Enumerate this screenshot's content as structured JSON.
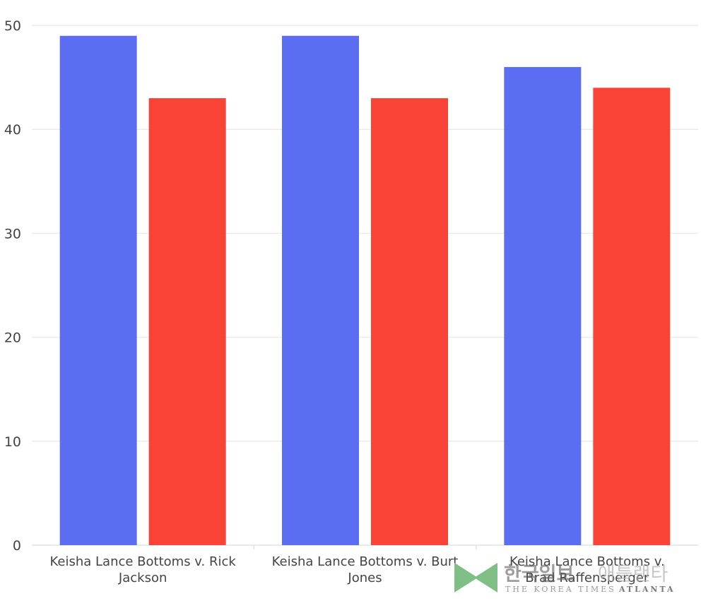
{
  "chart_data": {
    "type": "bar",
    "title": "",
    "xlabel": "",
    "ylabel": "",
    "categories": [
      [
        "Keisha Lance Bottoms v. Rick",
        "Jackson"
      ],
      [
        "Keisha Lance Bottoms v. Burt",
        "Jones"
      ],
      [
        "Keisha Lance Bottoms v.",
        "Brad Raffensperger"
      ]
    ],
    "series": [
      {
        "values": [
          49,
          49,
          46
        ],
        "color": "#5b6ef2"
      },
      {
        "values": [
          43,
          43,
          44
        ],
        "color": "#fa4337"
      }
    ],
    "ylim": [
      0,
      50
    ],
    "yticks": [
      0,
      10,
      20,
      30,
      40,
      50
    ],
    "grid": true,
    "legend": "none"
  },
  "watermark": {
    "korean_main": "한국일보",
    "korean_accent": "애틀랜타",
    "english_main": "THE KOREA TIMES",
    "english_accent": "ATLANTA",
    "logo_color": "#7fbf86"
  }
}
